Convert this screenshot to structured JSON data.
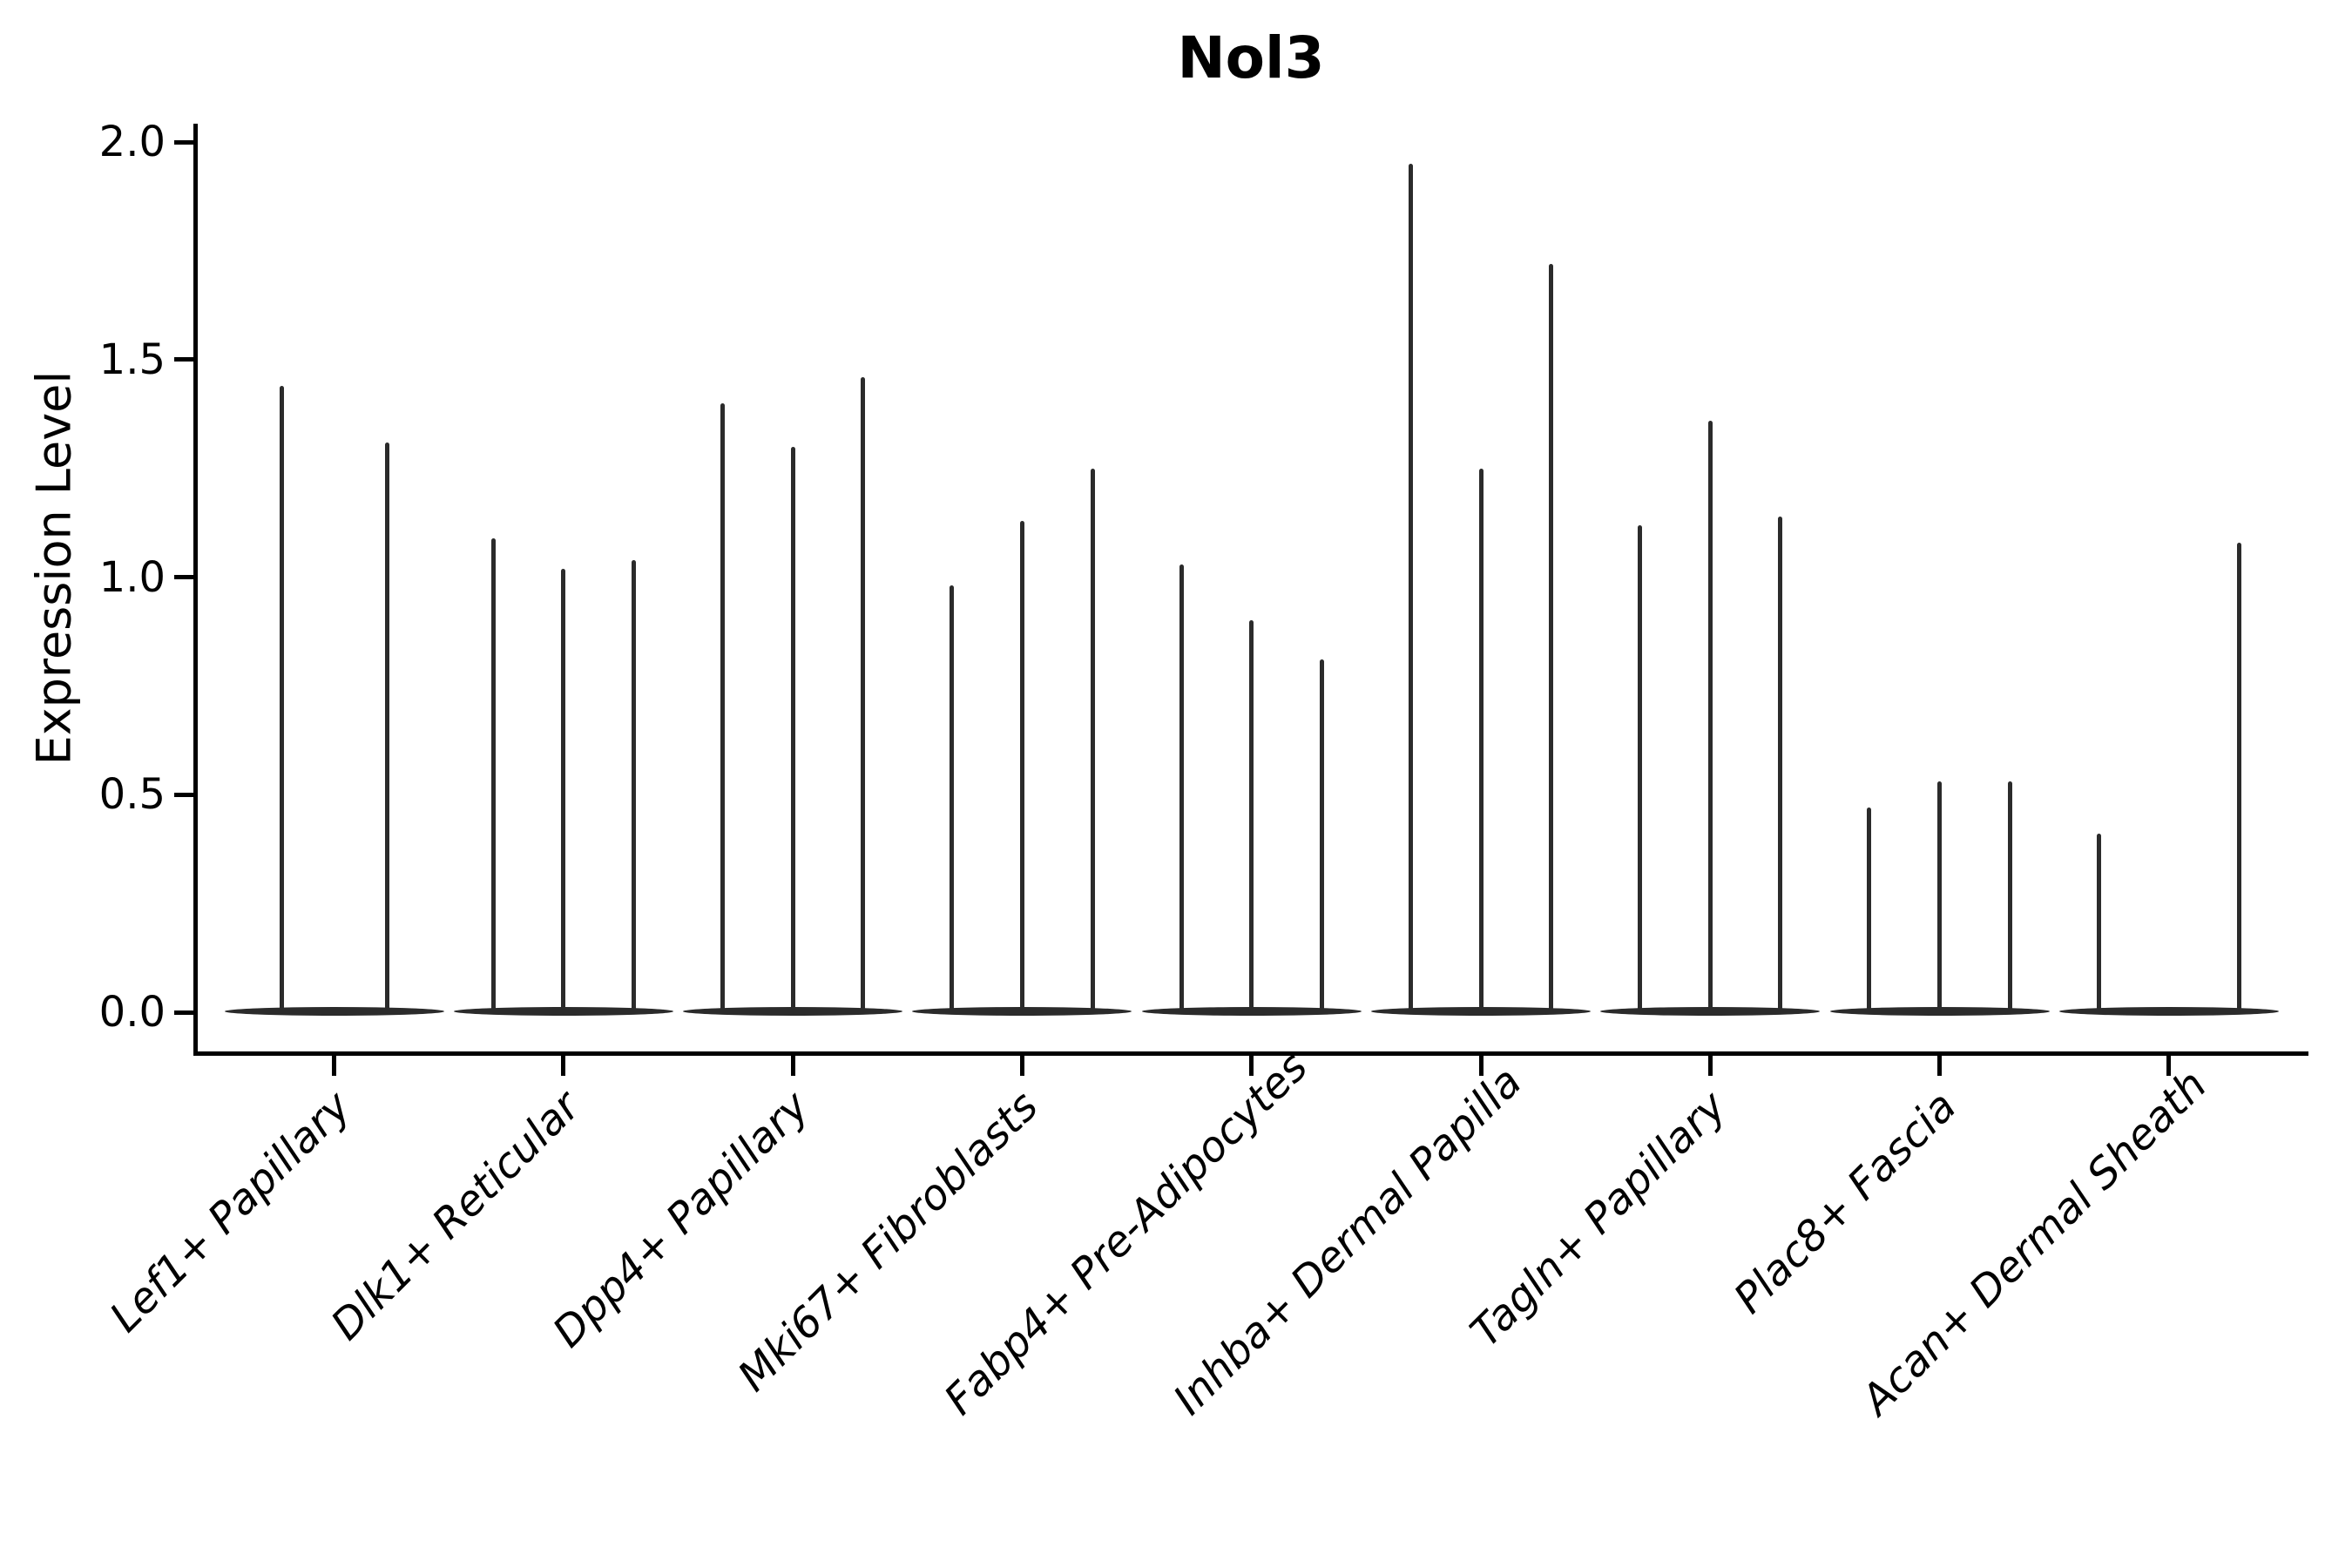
{
  "title": "Nol3",
  "y_axis": {
    "label": "Expression Level",
    "tick_labels": [
      "0.0",
      "0.5",
      "1.0",
      "1.5",
      "2.0"
    ],
    "tick_values": [
      0.0,
      0.5,
      1.0,
      1.5,
      2.0
    ]
  },
  "chart_data": {
    "type": "violin",
    "title": "Nol3",
    "xlabel": "",
    "ylabel": "Expression Level",
    "ylim": [
      0.0,
      2.0
    ],
    "yticks": [
      0.0,
      0.5,
      1.0,
      1.5,
      2.0
    ],
    "grid": false,
    "legend": "none",
    "violin_color": "#2b2b2b",
    "description": "Seurat-style stacked violin plot of Nol3 expression; each category holds narrow needle-like violins (max expression listed per violin, baseline mass at 0).",
    "categories": [
      {
        "label": "Lef1+ Papillary",
        "slots": 2,
        "violins": [
          {
            "slot": 0,
            "max": 1.44
          },
          {
            "slot": 1,
            "max": 1.31
          }
        ]
      },
      {
        "label": "Dlk1+ Reticular",
        "slots": 3,
        "violins": [
          {
            "slot": 0,
            "max": 1.09
          },
          {
            "slot": 1,
            "max": 1.02
          },
          {
            "slot": 2,
            "max": 1.04
          }
        ]
      },
      {
        "label": "Dpp4+ Papillary",
        "slots": 3,
        "violins": [
          {
            "slot": 0,
            "max": 1.4
          },
          {
            "slot": 1,
            "max": 1.3
          },
          {
            "slot": 2,
            "max": 1.46
          }
        ]
      },
      {
        "label": "Mki67+ Fibroblasts",
        "slots": 3,
        "violins": [
          {
            "slot": 0,
            "max": 0.98
          },
          {
            "slot": 1,
            "max": 1.13
          },
          {
            "slot": 2,
            "max": 1.25
          }
        ]
      },
      {
        "label": "Fabp4+ Pre-Adipocytes",
        "slots": 3,
        "violins": [
          {
            "slot": 0,
            "max": 1.03
          },
          {
            "slot": 1,
            "max": 0.9
          },
          {
            "slot": 2,
            "max": 0.81
          }
        ]
      },
      {
        "label": "Inhba+ Dermal Papilla",
        "slots": 3,
        "violins": [
          {
            "slot": 0,
            "max": 1.95
          },
          {
            "slot": 1,
            "max": 1.25
          },
          {
            "slot": 2,
            "max": 1.72
          }
        ]
      },
      {
        "label": "Tagln+ Papillary",
        "slots": 3,
        "violins": [
          {
            "slot": 0,
            "max": 1.12
          },
          {
            "slot": 1,
            "max": 1.36
          },
          {
            "slot": 2,
            "max": 1.14
          }
        ]
      },
      {
        "label": "Plac8+ Fascia",
        "slots": 3,
        "violins": [
          {
            "slot": 0,
            "max": 0.47
          },
          {
            "slot": 1,
            "max": 0.53
          },
          {
            "slot": 2,
            "max": 0.53
          }
        ]
      },
      {
        "label": "Acan+ Dermal Sheath",
        "slots": 3,
        "violins": [
          {
            "slot": 0,
            "max": 0.41
          },
          {
            "slot": 2,
            "max": 1.08
          }
        ]
      }
    ]
  }
}
